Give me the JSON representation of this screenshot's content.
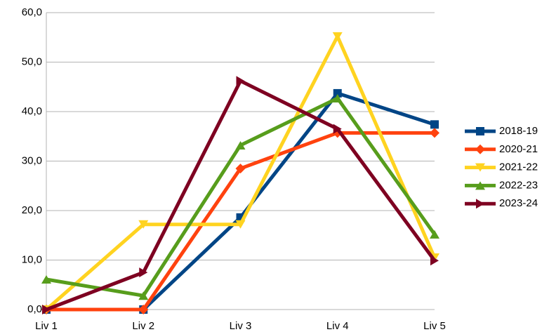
{
  "chart_data": {
    "type": "line",
    "categories": [
      "Liv 1",
      "Liv 2",
      "Liv 3",
      "Liv 4",
      "Liv 5"
    ],
    "series": [
      {
        "name": "2018-19",
        "color": "#004586",
        "marker": "square",
        "values": [
          0,
          0,
          18.6,
          43.7,
          37.4
        ]
      },
      {
        "name": "2020-21",
        "color": "#ff420e",
        "marker": "diamond",
        "values": [
          0,
          0,
          28.5,
          35.7,
          35.7
        ]
      },
      {
        "name": "2021-22",
        "color": "#ffd320",
        "marker": "triangle-down",
        "values": [
          0,
          17.2,
          17.2,
          55.2,
          10.5
        ]
      },
      {
        "name": "2022-23",
        "color": "#579d1c",
        "marker": "triangle-up",
        "values": [
          6.1,
          2.8,
          33.2,
          42.7,
          15.2
        ]
      },
      {
        "name": "2023-24",
        "color": "#7e0021",
        "marker": "triangle-right",
        "values": [
          0,
          7.5,
          46.2,
          36.5,
          9.9
        ]
      }
    ],
    "ylim": [
      0,
      60
    ],
    "yticks": [
      {
        "value": 0,
        "label": "0,0"
      },
      {
        "value": 10,
        "label": "10,0"
      },
      {
        "value": 20,
        "label": "20,0"
      },
      {
        "value": 30,
        "label": "30,0"
      },
      {
        "value": 40,
        "label": "40,0"
      },
      {
        "value": 50,
        "label": "50,0"
      },
      {
        "value": 60,
        "label": "60,0"
      }
    ],
    "grid": true,
    "legend": "right"
  }
}
